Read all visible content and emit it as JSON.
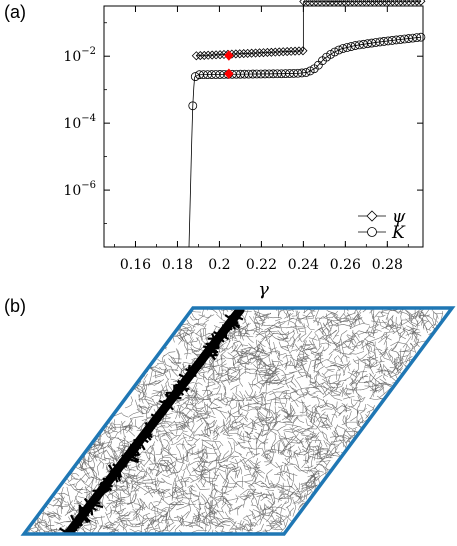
{
  "figure": {
    "panel_a_label": "(a)",
    "panel_b_label": "(b)"
  },
  "chart_data": {
    "type": "line",
    "title": "",
    "xlabel": "γ",
    "ylabel": "",
    "xlim": [
      0.145,
      0.297
    ],
    "ylim_log10": [
      -7.7,
      -0.5
    ],
    "y_scale": "log",
    "grid": false,
    "legend_placement": "bottom-right",
    "x_ticks": [
      0.16,
      0.18,
      0.2,
      0.22,
      0.24,
      0.26,
      0.28
    ],
    "x_tick_labels": [
      "0.16",
      "0.18",
      "0.2",
      "0.22",
      "0.24",
      "0.26",
      "0.28"
    ],
    "y_ticks_log10": [
      -2,
      -4,
      -6
    ],
    "y_tick_base": "10",
    "y_tick_exponents": [
      "−2",
      "−4",
      "−6"
    ],
    "series": [
      {
        "name": "ψ",
        "marker": "diamond",
        "color": "#000000",
        "segments": [
          {
            "x": [
              0.189,
              0.2398
            ],
            "y": [
              0.0103,
              0.0145
            ]
          },
          {
            "x": [
              0.2402,
              0.296
            ],
            "y": [
              0.43,
              0.44
            ]
          }
        ]
      },
      {
        "name": "K",
        "marker": "circle",
        "color": "#000000",
        "points": [
          [
            0.1855,
            1e-08
          ],
          [
            0.1862,
            1e-06
          ],
          [
            0.1868,
            3e-05
          ],
          [
            0.1873,
            0.00033
          ],
          [
            0.1878,
            0.0012
          ],
          [
            0.1882,
            0.0024
          ],
          [
            0.19,
            0.0028
          ],
          [
            0.23,
            0.003
          ],
          [
            0.238,
            0.0031
          ],
          [
            0.242,
            0.0033
          ],
          [
            0.246,
            0.0045
          ],
          [
            0.25,
            0.0085
          ],
          [
            0.254,
            0.0125
          ],
          [
            0.258,
            0.0165
          ],
          [
            0.265,
            0.021
          ],
          [
            0.275,
            0.026
          ],
          [
            0.285,
            0.031
          ],
          [
            0.296,
            0.037
          ]
        ]
      }
    ],
    "highlighted_points": {
      "color": "#ff0000",
      "x": 0.2045,
      "y": [
        0.0105,
        0.003
      ]
    },
    "legend": [
      "ψ",
      "K"
    ]
  },
  "panel_b": {
    "frame_color": "#1f77b4",
    "network_color": "#555555",
    "band_color": "#000000"
  }
}
